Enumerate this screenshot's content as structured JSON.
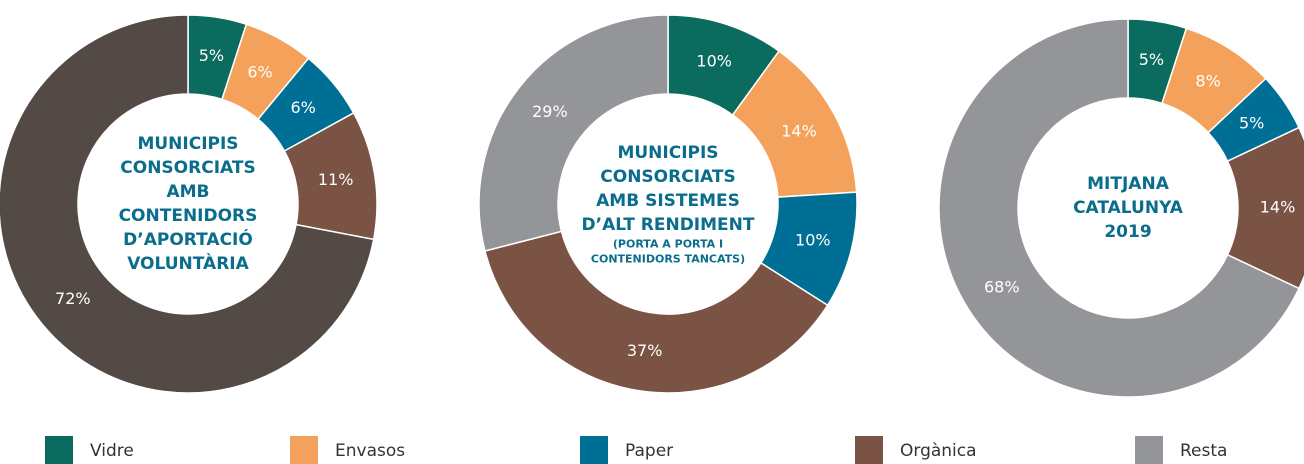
{
  "legend": {
    "names": [
      "Vidre",
      "Envasos",
      "Paper",
      "Orgànica",
      "Resta"
    ],
    "colors": [
      "#0b6b5e",
      "#f4a25b",
      "#006f96",
      "#7a5344",
      "#939598"
    ]
  },
  "chart_data": [
    {
      "type": "pie",
      "values": [
        5,
        6,
        6,
        11,
        72
      ],
      "value_labels": [
        "5%",
        "6%",
        "6%",
        "11%",
        "72%"
      ],
      "colors": [
        "#0b6b5e",
        "#f4a25b",
        "#006f96",
        "#7a5344",
        "#534a45"
      ],
      "center_text": [
        "MUNICIPIS",
        "CONSORCIATS",
        "AMB",
        "CONTENIDORS",
        "D’APORTACIÓ",
        "VOLUNTÀRIA"
      ]
    },
    {
      "type": "pie",
      "values": [
        10,
        14,
        10,
        37,
        29
      ],
      "value_labels": [
        "10%",
        "14%",
        "10%",
        "37%",
        "29%"
      ],
      "colors": [
        "#0b6b5e",
        "#f4a25b",
        "#006f96",
        "#7a5344",
        "#939598"
      ],
      "center_text": [
        "MUNICIPIS",
        "CONSORCIATS",
        "AMB SISTEMES",
        "D’ALT RENDIMENT"
      ],
      "center_subtext": [
        "(PORTA A PORTA I",
        "CONTENIDORS TANCATS)"
      ]
    },
    {
      "type": "pie",
      "values": [
        5,
        8,
        5,
        14,
        68
      ],
      "value_labels": [
        "5%",
        "8%",
        "5%",
        "14%",
        "68%"
      ],
      "colors": [
        "#0b6b5e",
        "#f4a25b",
        "#006f96",
        "#7a5344",
        "#939598"
      ],
      "center_text": [
        "MITJANA",
        "CATALUNYA",
        "2019"
      ]
    }
  ]
}
